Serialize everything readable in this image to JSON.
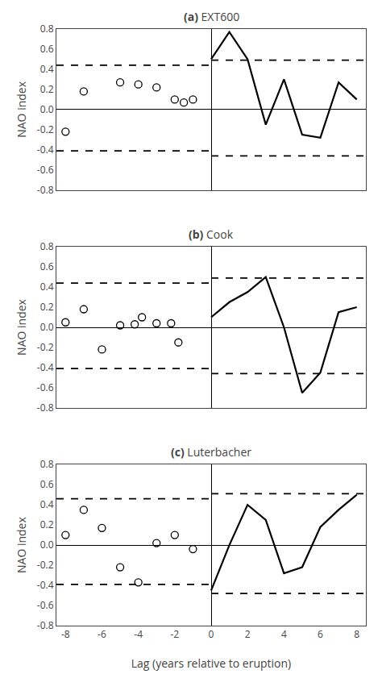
{
  "chart_data": [
    {
      "type": "line",
      "title": "(a) EXT600",
      "ylabel": "NAO index",
      "xlim": [
        -8.5,
        8.5
      ],
      "ylim": [
        -0.8,
        0.8
      ],
      "xticks": [
        -8,
        -6,
        -4,
        -2,
        0,
        2,
        4,
        6,
        8
      ],
      "yticks": [
        -0.8,
        -0.6,
        -0.4,
        -0.2,
        {
          "value": 0,
          "label": "0.0"
        },
        0.2,
        0.4,
        0.6,
        0.8
      ],
      "grid": false,
      "tick_labels": "y",
      "series": [
        {
          "type": "line",
          "line_style": "dashed",
          "color": "#000000",
          "x": [
            -8.5,
            0
          ],
          "values": [
            0.44,
            0.44
          ]
        },
        {
          "type": "line",
          "line_style": "dashed",
          "color": "#000000",
          "x": [
            -8.5,
            0
          ],
          "values": [
            -0.41,
            -0.41
          ]
        },
        {
          "type": "line",
          "line_style": "dashed",
          "color": "#000000",
          "x": [
            0,
            8.5
          ],
          "values": [
            0.49,
            0.49
          ]
        },
        {
          "type": "line",
          "line_style": "dashed",
          "color": "#000000",
          "x": [
            0,
            8.5
          ],
          "values": [
            -0.46,
            -0.46
          ]
        },
        {
          "type": "scatter",
          "marker": "circle-open",
          "color": "#000000",
          "x": [
            -8,
            -7,
            -5,
            -4,
            -3,
            -2,
            -1.5,
            -1
          ],
          "values": [
            -0.22,
            0.18,
            0.27,
            0.25,
            0.22,
            0.1,
            0.07,
            0.1
          ]
        },
        {
          "type": "line",
          "line_style": "solid",
          "color": "#000000",
          "x": [
            0,
            1,
            2,
            3,
            4,
            5,
            6,
            7,
            8
          ],
          "values": [
            0.5,
            0.77,
            0.5,
            -0.15,
            0.3,
            -0.25,
            -0.28,
            0.27,
            0.1
          ]
        }
      ]
    },
    {
      "type": "line",
      "title": "(b) Cook",
      "ylabel": "NAO index",
      "xlim": [
        -8.5,
        8.5
      ],
      "ylim": [
        -0.8,
        0.8
      ],
      "xticks": [
        -8,
        -6,
        -4,
        -2,
        0,
        2,
        4,
        6,
        8
      ],
      "yticks": [
        -0.8,
        -0.6,
        -0.4,
        -0.2,
        {
          "value": 0,
          "label": "0.0"
        },
        0.2,
        0.4,
        0.6,
        0.8
      ],
      "grid": false,
      "tick_labels": "y",
      "series": [
        {
          "type": "line",
          "line_style": "dashed",
          "color": "#000000",
          "x": [
            -8.5,
            0
          ],
          "values": [
            0.44,
            0.44
          ]
        },
        {
          "type": "line",
          "line_style": "dashed",
          "color": "#000000",
          "x": [
            -8.5,
            0
          ],
          "values": [
            -0.41,
            -0.41
          ]
        },
        {
          "type": "line",
          "line_style": "dashed",
          "color": "#000000",
          "x": [
            0,
            8.5
          ],
          "values": [
            0.49,
            0.49
          ]
        },
        {
          "type": "line",
          "line_style": "dashed",
          "color": "#000000",
          "x": [
            0,
            8.5
          ],
          "values": [
            -0.46,
            -0.46
          ]
        },
        {
          "type": "scatter",
          "marker": "circle-open",
          "color": "#000000",
          "x": [
            -8,
            -7,
            -6,
            -5,
            -4.2,
            -3.8,
            -3,
            -2.2,
            -1.8
          ],
          "values": [
            0.05,
            0.18,
            -0.22,
            0.02,
            0.03,
            0.1,
            0.04,
            0.04,
            -0.15
          ]
        },
        {
          "type": "line",
          "line_style": "solid",
          "color": "#000000",
          "x": [
            0,
            1,
            2,
            3,
            4,
            5,
            6,
            7,
            8
          ],
          "values": [
            0.1,
            0.25,
            0.35,
            0.5,
            0.0,
            -0.65,
            -0.45,
            0.15,
            0.2
          ]
        }
      ]
    },
    {
      "type": "line",
      "title": "(c) Luterbacher",
      "xlabel": "Lag (years relative to eruption)",
      "ylabel": "NAO index",
      "xlim": [
        -8.5,
        8.5
      ],
      "ylim": [
        -0.8,
        0.8
      ],
      "xticks": [
        -8,
        -6,
        -4,
        -2,
        0,
        2,
        4,
        6,
        8
      ],
      "yticks": [
        -0.8,
        -0.6,
        -0.4,
        -0.2,
        {
          "value": 0,
          "label": "0.0"
        },
        0.2,
        0.4,
        0.6,
        0.8
      ],
      "grid": false,
      "series": [
        {
          "type": "line",
          "line_style": "dashed",
          "color": "#000000",
          "x": [
            -8.5,
            0
          ],
          "values": [
            0.46,
            0.46
          ]
        },
        {
          "type": "line",
          "line_style": "dashed",
          "color": "#000000",
          "x": [
            -8.5,
            0
          ],
          "values": [
            -0.39,
            -0.39
          ]
        },
        {
          "type": "line",
          "line_style": "dashed",
          "color": "#000000",
          "x": [
            0,
            8.5
          ],
          "values": [
            0.51,
            0.51
          ]
        },
        {
          "type": "line",
          "line_style": "dashed",
          "color": "#000000",
          "x": [
            0,
            8.5
          ],
          "values": [
            -0.48,
            -0.48
          ]
        },
        {
          "type": "scatter",
          "marker": "circle-open",
          "color": "#000000",
          "x": [
            -8,
            -7,
            -6,
            -5,
            -4,
            -3,
            -2,
            -1
          ],
          "values": [
            0.1,
            0.35,
            0.17,
            -0.22,
            -0.37,
            0.02,
            0.1,
            -0.04
          ]
        },
        {
          "type": "line",
          "line_style": "solid",
          "color": "#000000",
          "x": [
            0,
            1,
            2,
            3,
            4,
            5,
            6,
            7,
            8
          ],
          "values": [
            -0.45,
            0.0,
            0.4,
            0.25,
            -0.28,
            -0.22,
            0.18,
            0.35,
            0.5
          ]
        }
      ]
    }
  ]
}
